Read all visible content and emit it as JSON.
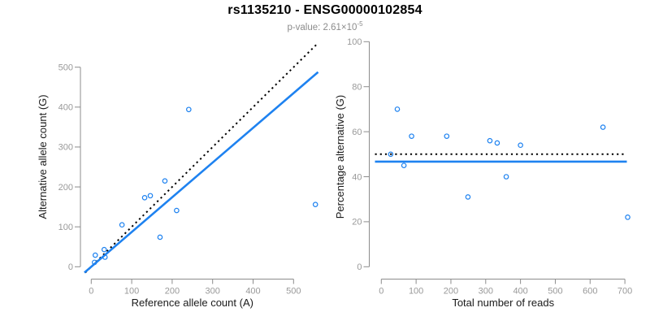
{
  "header": {
    "title": "rs1135210 - ENSG00000102854",
    "subtitle_main": "p-value: 2.61×10",
    "subtitle_exponent": "-5"
  },
  "colors": {
    "accent_blue": "#1e82f0",
    "identity_black": "#000000",
    "axis_line": "#8c8c8c",
    "tick_label": "#999999",
    "axis_title": "#1a1a1a",
    "background": "#ffffff"
  },
  "chart_data": [
    {
      "type": "scatter",
      "name": "allele-count-scatter",
      "xlabel": "Reference allele count (A)",
      "ylabel": "Alternative allele count (G)",
      "xlim": [
        0,
        500
      ],
      "ylim": [
        0,
        500
      ],
      "xticks": [
        0,
        100,
        200,
        300,
        400,
        500
      ],
      "yticks": [
        0,
        100,
        200,
        300,
        400,
        500
      ],
      "grid": false,
      "legend": "none",
      "points": [
        [
          8,
          11
        ],
        [
          10,
          29
        ],
        [
          32,
          43
        ],
        [
          34,
          24
        ],
        [
          76,
          105
        ],
        [
          132,
          173
        ],
        [
          146,
          178
        ],
        [
          170,
          74
        ],
        [
          182,
          215
        ],
        [
          211,
          141
        ],
        [
          241,
          394
        ],
        [
          554,
          156
        ]
      ],
      "lines": [
        {
          "name": "identity-line",
          "kind": "slope",
          "slope": 1,
          "intercept": 0,
          "style": "dotted",
          "color": "#000000"
        },
        {
          "name": "regression-line",
          "kind": "slope",
          "slope": 0.87,
          "intercept": 0,
          "style": "solid",
          "color": "#1e82f0"
        }
      ]
    },
    {
      "type": "scatter",
      "name": "percentage-scatter",
      "xlabel": "Total number of reads",
      "ylabel": "Percentage alternative (G)",
      "xlim": [
        0,
        700
      ],
      "ylim": [
        0,
        100
      ],
      "xticks": [
        0,
        100,
        200,
        300,
        400,
        500,
        600,
        700
      ],
      "yticks": [
        0,
        20,
        40,
        60,
        80,
        100
      ],
      "grid": false,
      "legend": "none",
      "points": [
        [
          27,
          50
        ],
        [
          46,
          70
        ],
        [
          65,
          45
        ],
        [
          87,
          58
        ],
        [
          188,
          58
        ],
        [
          249,
          31
        ],
        [
          312,
          56
        ],
        [
          333,
          55
        ],
        [
          359,
          40
        ],
        [
          400,
          54
        ],
        [
          637,
          62
        ],
        [
          708,
          22
        ]
      ],
      "lines": [
        {
          "name": "expected-50-line",
          "kind": "hline",
          "y": 50,
          "style": "dotted",
          "color": "#000000"
        },
        {
          "name": "mean-percentage-line",
          "kind": "hline",
          "y": 46.7,
          "style": "solid",
          "color": "#1e82f0"
        }
      ]
    }
  ]
}
